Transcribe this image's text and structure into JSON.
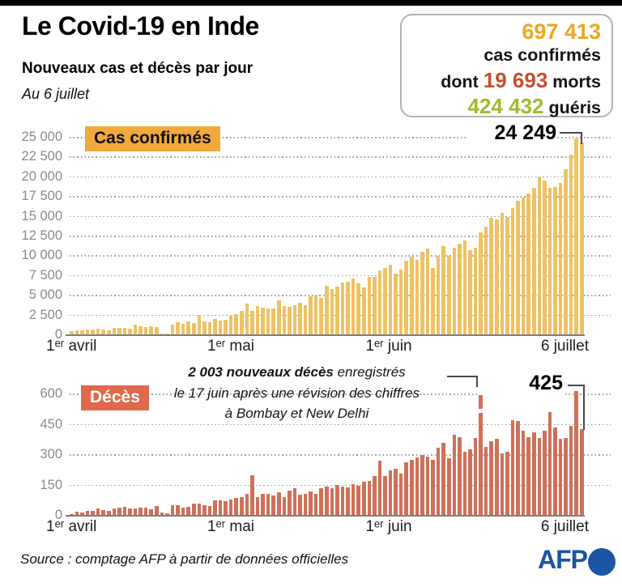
{
  "header": {
    "title": "Le Covid-19 en Inde",
    "subtitle": "Nouveaux cas et décès par jour",
    "date": "Au 6 juillet"
  },
  "stats_box": {
    "confirmed_value": "697 413",
    "confirmed_label": "cas confirmés",
    "deaths_prefix": "dont ",
    "deaths_value": "19 693",
    "deaths_suffix": " morts",
    "recovered_value": "424 432",
    "recovered_suffix": " guéris",
    "colors": {
      "confirmed": "#eea71f",
      "deaths": "#c4502f",
      "recovered": "#a6b92a"
    }
  },
  "footer": {
    "source": "Source : comptage AFP à partir de données officielles",
    "logo": "AFP",
    "logo_color": "#1a56a4"
  },
  "chart_data": [
    {
      "type": "bar",
      "name": "cas_confirmes",
      "label_chip": "Cas confirmés",
      "peak_label": "24 249",
      "x_period": "daily, 1 avril - 6 juillet 2020 (97 jours)",
      "x_tick_labels": [
        "1ᵉʳ avril",
        "1ᵉʳ mai",
        "1ᵉʳ juin",
        "6 juillet"
      ],
      "y_tick_labels": [
        "25 000",
        "22 500",
        "20 000",
        "17 500",
        "15 000",
        "12 500",
        "10 000",
        "7 500",
        "5 000",
        "2 500",
        "0"
      ],
      "ylim": [
        0,
        25000
      ],
      "grid": "dotted-horizontal",
      "legend": "none",
      "bar_color": "#eec264",
      "values": [
        424,
        486,
        560,
        579,
        609,
        693,
        573,
        565,
        813,
        871,
        854,
        758,
        1243,
        1031,
        886,
        1061,
        922,
        60,
        120,
        1239,
        1537,
        1292,
        1667,
        1408,
        2500,
        1607,
        1561,
        1902,
        1702,
        1801,
        2396,
        2564,
        2952,
        3900,
        2958,
        3561,
        3344,
        3277,
        3320,
        4296,
        3604,
        3525,
        3722,
        3967,
        3736,
        4864,
        5050,
        4628,
        6154,
        5720,
        6023,
        6536,
        6654,
        7113,
        6414,
        5907,
        7246,
        7254,
        8138,
        8364,
        8789,
        7723,
        8171,
        9304,
        9851,
        9471,
        10438,
        10884,
        8442,
        9987,
        11156,
        9985,
        10956,
        11458,
        11929,
        10667,
        10974,
        12881,
        13586,
        14721,
        14516,
        15413,
        14821,
        15968,
        16922,
        17296,
        17846,
        18552,
        19906,
        19459,
        18522,
        18653,
        19148,
        20903,
        22771,
        24850,
        24249
      ]
    },
    {
      "type": "bar",
      "name": "deces",
      "label_chip": "Décès",
      "peak_label": "425",
      "annotation_bold": "2 003 nouveaux décès",
      "annotation_line1_rest": " enregistrés",
      "annotation_line2": "le 17 juin après une révision des chiffres",
      "annotation_line3": "à Bombay et New Delhi",
      "broken_bar": {
        "date": "17 juin",
        "value": 2003
      },
      "x_period": "daily, 1 avril - 6 juillet 2020 (97 jours)",
      "x_tick_labels": [
        "1ᵉʳ avril",
        "1ᵉʳ mai",
        "1ᵉʳ juin",
        "6 juillet"
      ],
      "y_tick_labels": [
        "600",
        "450",
        "300",
        "150",
        "0"
      ],
      "ylim": [
        0,
        600
      ],
      "grid": "dotted-horizontal",
      "legend": "none",
      "bar_color": "#d0705a",
      "values": [
        5,
        16,
        12,
        21,
        22,
        32,
        25,
        20,
        33,
        37,
        40,
        34,
        31,
        37,
        38,
        27,
        43,
        12,
        8,
        47,
        50,
        37,
        41,
        57,
        56,
        47,
        43,
        73,
        71,
        67,
        77,
        83,
        90,
        103,
        195,
        89,
        103,
        106,
        95,
        111,
        87,
        122,
        134,
        100,
        104,
        118,
        103,
        131,
        140,
        134,
        148,
        142,
        137,
        154,
        146,
        165,
        170,
        194,
        269,
        193,
        222,
        230,
        204,
        260,
        273,
        286,
        297,
        287,
        271,
        331,
        357,
        279,
        396,
        386,
        311,
        325,
        380,
        2003,
        336,
        364,
        375,
        306,
        312,
        468,
        465,
        418,
        384,
        407,
        380,
        418,
        507,
        434,
        377,
        379,
        442,
        613,
        425
      ]
    }
  ]
}
